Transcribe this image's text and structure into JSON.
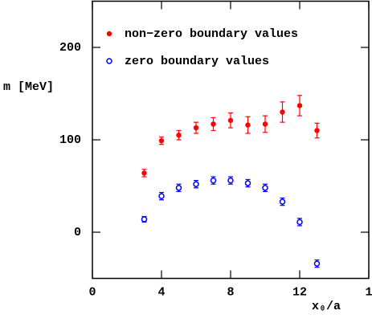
{
  "chart_data": {
    "type": "scatter",
    "x_label": "x₀/a",
    "y_label": "m [MeV]",
    "x": [
      3,
      4,
      5,
      6,
      7,
      8,
      9,
      10,
      11,
      12,
      13
    ],
    "series": [
      {
        "name": "non−zero boundary values",
        "color": "#ff0000",
        "marker": "filled",
        "values": [
          64,
          99,
          105,
          113,
          117,
          121,
          116,
          117,
          130,
          137,
          110
        ],
        "errors": [
          4,
          4,
          5,
          6,
          7,
          8,
          9,
          9,
          11,
          11,
          8
        ]
      },
      {
        "name": "zero boundary values",
        "color": "#0000ff",
        "marker": "open",
        "values": [
          14,
          39,
          48,
          52,
          56,
          56,
          53,
          48,
          33,
          11,
          -34
        ],
        "errors": [
          3,
          4,
          4,
          4,
          4,
          4,
          4,
          4,
          4,
          4,
          4
        ]
      }
    ],
    "xlim": [
      0,
      16
    ],
    "xticks": [
      0,
      4,
      8,
      12,
      {
        "value": 16,
        "label": "1"
      }
    ],
    "ylim": [
      -50,
      250
    ],
    "yticks": [
      0,
      100,
      200
    ],
    "legend": "upper left"
  }
}
